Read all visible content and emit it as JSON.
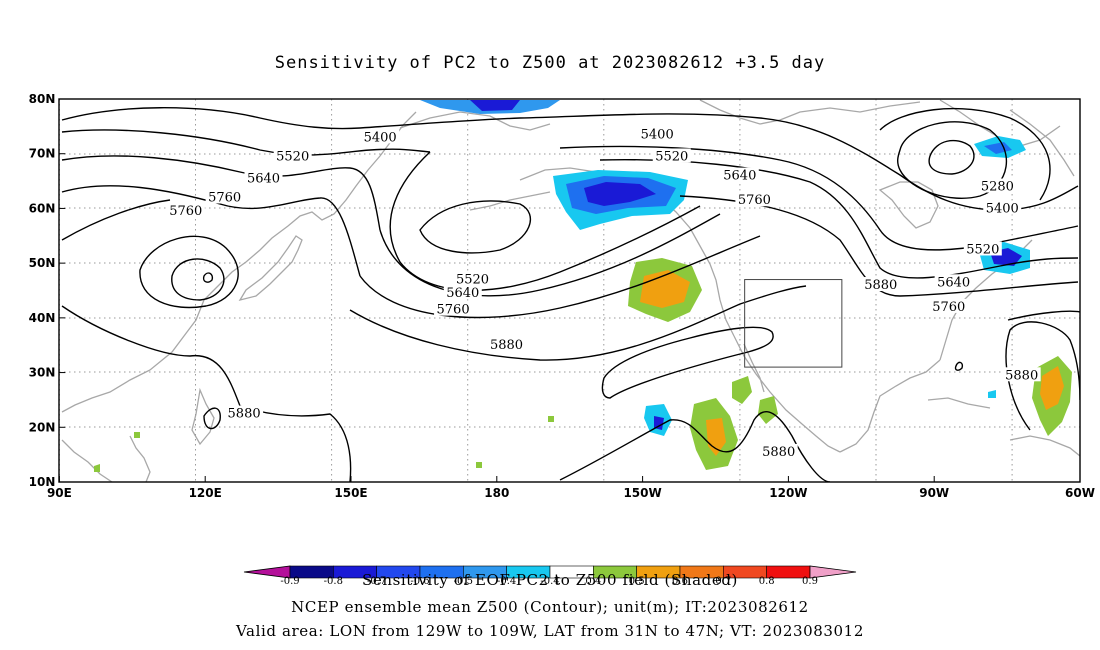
{
  "title": "Sensitivity of PC2 to Z500 at 2023082612 +3.5 day",
  "map": {
    "projection": "cylindrical",
    "lon_range": [
      90,
      300
    ],
    "lat_range": [
      10,
      80
    ],
    "lon_ticks": [
      {
        "lon": 90,
        "label": "90E"
      },
      {
        "lon": 120,
        "label": "120E"
      },
      {
        "lon": 150,
        "label": "150E"
      },
      {
        "lon": 180,
        "label": "180"
      },
      {
        "lon": 210,
        "label": "150W"
      },
      {
        "lon": 240,
        "label": "120W"
      },
      {
        "lon": 270,
        "label": "90W"
      },
      {
        "lon": 300,
        "label": "60W"
      }
    ],
    "lat_ticks": [
      {
        "lat": 80,
        "label": "80N"
      },
      {
        "lat": 70,
        "label": "70N"
      },
      {
        "lat": 60,
        "label": "60N"
      },
      {
        "lat": 50,
        "label": "50N"
      },
      {
        "lat": 40,
        "label": "40N"
      },
      {
        "lat": 30,
        "label": "30N"
      },
      {
        "lat": 20,
        "label": "20N"
      },
      {
        "lat": 10,
        "label": "10N"
      }
    ],
    "grid": "dotted",
    "valid_box": {
      "lon": [
        231,
        251
      ],
      "lat": [
        31,
        47
      ]
    },
    "contour_labels": [
      {
        "text": "5400",
        "lon": 156,
        "lat": 73
      },
      {
        "text": "5520",
        "lon": 138,
        "lat": 69.5
      },
      {
        "text": "5640",
        "lon": 132,
        "lat": 65.5
      },
      {
        "text": "5760",
        "lon": 124,
        "lat": 62
      },
      {
        "text": "5760",
        "lon": 116,
        "lat": 59.5
      },
      {
        "text": "5400",
        "lon": 213,
        "lat": 73.5
      },
      {
        "text": "5520",
        "lon": 216,
        "lat": 69.5
      },
      {
        "text": "5640",
        "lon": 230,
        "lat": 66
      },
      {
        "text": "5760",
        "lon": 233,
        "lat": 61.5
      },
      {
        "text": "5520",
        "lon": 175,
        "lat": 47
      },
      {
        "text": "5640",
        "lon": 173,
        "lat": 44.5
      },
      {
        "text": "5760",
        "lon": 171,
        "lat": 41.5
      },
      {
        "text": "5880",
        "lon": 182,
        "lat": 35
      },
      {
        "text": "5880",
        "lon": 128,
        "lat": 22.5
      },
      {
        "text": "5880",
        "lon": 259,
        "lat": 46
      },
      {
        "text": "5280",
        "lon": 283,
        "lat": 64
      },
      {
        "text": "5400",
        "lon": 284,
        "lat": 60
      },
      {
        "text": "5520",
        "lon": 280,
        "lat": 52.5
      },
      {
        "text": "5640",
        "lon": 274,
        "lat": 46.5
      },
      {
        "text": "5760",
        "lon": 273,
        "lat": 42
      },
      {
        "text": "5880",
        "lon": 288,
        "lat": 29.5
      },
      {
        "text": "5880",
        "lon": 238,
        "lat": 15.5
      }
    ]
  },
  "colorbar": {
    "labels": [
      "-0.9",
      "-0.8",
      "-0.7",
      "-0.6",
      "-0.5",
      "-0.4",
      "-0.4",
      "0.4",
      "0.5",
      "0.6",
      "0.7",
      "0.8",
      "0.9"
    ],
    "colors": [
      "#0a0a88",
      "#1a1ad6",
      "#2248ee",
      "#1e70f0",
      "#2f98ee",
      "#18c8f0",
      "#ffffff",
      "#8cc83c",
      "#f0a010",
      "#f07818",
      "#f04820",
      "#f01010"
    ],
    "low_end_color": "#b4109a",
    "high_end_color": "#f0a0c8"
  },
  "footer": {
    "line1": "Sensitivity of EOF PC2 to Z500 field (Shaded)",
    "line2": "NCEP ensemble mean Z500 (Contour); unit(m); IT:2023082612",
    "line3": "Valid area: LON from 129W to 109W, LAT from 31N to 47N; VT: 2023083012"
  }
}
